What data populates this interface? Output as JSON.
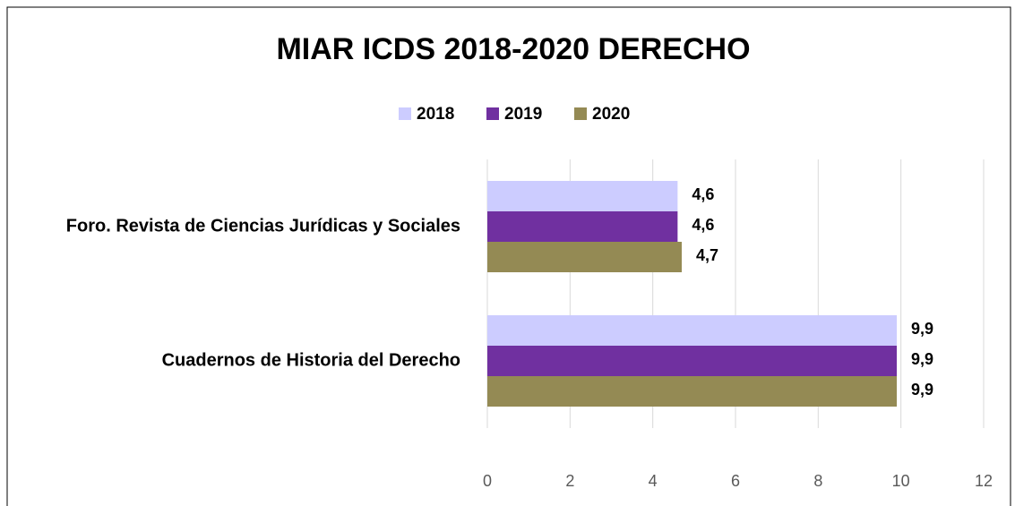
{
  "chart_data": {
    "type": "hbar",
    "title": "MIAR ICDS 2018-2020 DERECHO",
    "categories": [
      "Foro. Revista de Ciencias Jurídicas y Sociales",
      "Cuadernos de Historia del Derecho"
    ],
    "series": [
      {
        "name": "2018",
        "color": "#ccccff",
        "values": [
          4.6,
          9.9
        ],
        "value_labels": [
          "4,6",
          "9,9"
        ]
      },
      {
        "name": "2019",
        "color": "#7030a0",
        "values": [
          4.6,
          9.9
        ],
        "value_labels": [
          "4,6",
          "9,9"
        ]
      },
      {
        "name": "2020",
        "color": "#948a54",
        "values": [
          4.7,
          9.9
        ],
        "value_labels": [
          "4,7",
          "9,9"
        ]
      }
    ],
    "xlim": [
      0,
      12
    ],
    "xticks": [
      0,
      2,
      4,
      6,
      8,
      10,
      12
    ],
    "grid": true,
    "legend": "top"
  }
}
